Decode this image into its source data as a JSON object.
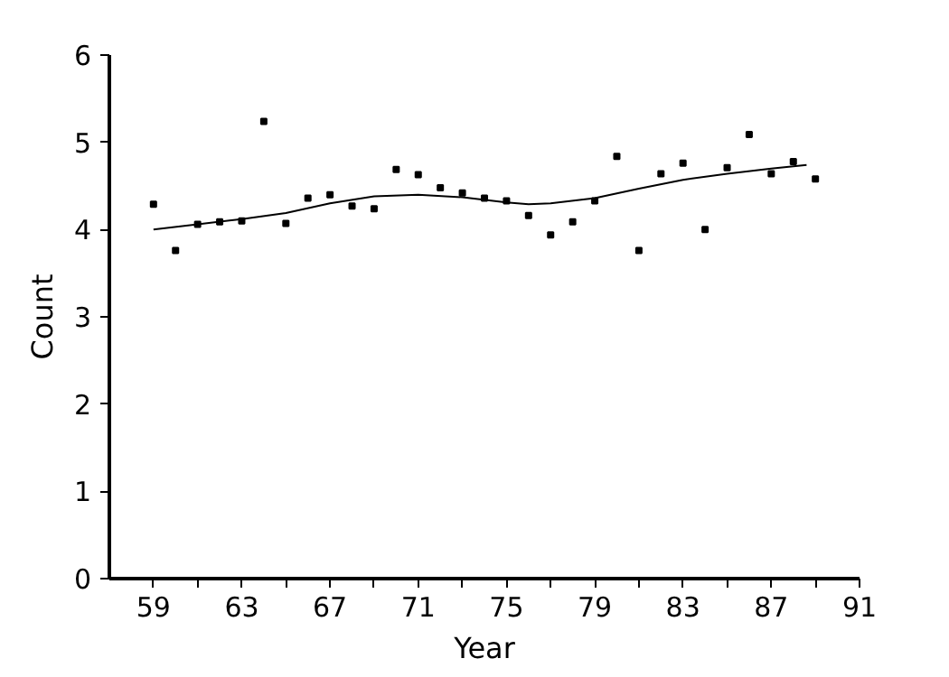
{
  "chart_data": {
    "type": "scatter",
    "xlabel": "Year",
    "ylabel": "Count",
    "xlim": [
      57,
      91
    ],
    "ylim": [
      0,
      6
    ],
    "xticks": [
      59,
      {
        "value": 61,
        "label": null
      },
      63,
      {
        "value": 65,
        "label": null
      },
      67,
      {
        "value": 69,
        "label": null
      },
      71,
      {
        "value": 73,
        "label": null
      },
      75,
      {
        "value": 77,
        "label": null
      },
      79,
      {
        "value": 81,
        "label": null
      },
      83,
      {
        "value": 85,
        "label": null
      },
      87,
      {
        "value": 89,
        "label": null
      },
      91
    ],
    "yticks": [
      0,
      1,
      2,
      3,
      4,
      5,
      6
    ],
    "grid": false,
    "series": [
      {
        "marker": "square",
        "color": "#000000",
        "x": [
          59,
          60,
          61,
          62,
          63,
          64,
          65,
          66,
          67,
          68,
          69,
          70,
          71,
          72,
          73,
          74,
          75,
          76,
          77,
          78,
          79,
          80,
          81,
          82,
          83,
          84,
          85,
          86,
          87,
          88,
          89
        ],
        "values": [
          4.29,
          3.76,
          4.06,
          4.09,
          4.1,
          5.24,
          4.07,
          4.36,
          4.4,
          4.27,
          4.24,
          4.69,
          4.63,
          4.48,
          4.42,
          4.36,
          4.33,
          4.16,
          3.94,
          4.09,
          4.33,
          4.84,
          3.76,
          4.64,
          4.76,
          4.0,
          4.71,
          5.09,
          4.64,
          4.78,
          4.58
        ]
      },
      {
        "type": "line",
        "marker": "none",
        "color": "#000000",
        "x": [
          59,
          61,
          63,
          65,
          67,
          69,
          71,
          73,
          75,
          76,
          77,
          79,
          81,
          83,
          85,
          87,
          88.6
        ],
        "values": [
          4.0,
          4.06,
          4.12,
          4.19,
          4.3,
          4.38,
          4.4,
          4.37,
          4.31,
          4.29,
          4.3,
          4.36,
          4.47,
          4.57,
          4.64,
          4.7,
          4.74
        ]
      }
    ]
  }
}
